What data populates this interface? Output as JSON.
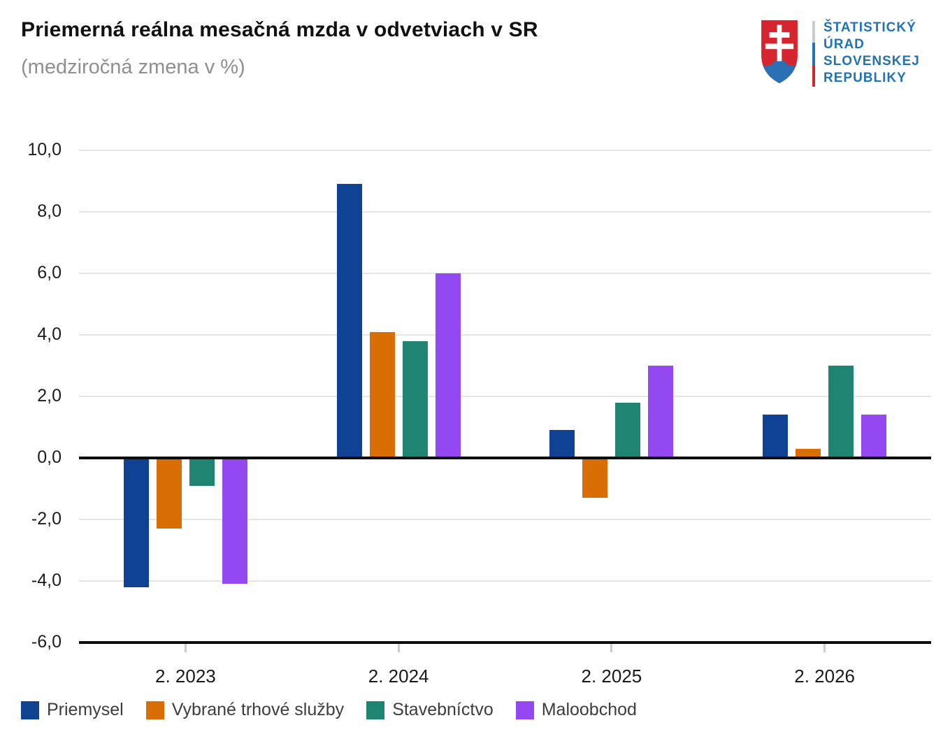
{
  "logo": {
    "lines": [
      "ŠTATISTICKÝ",
      "ÚRAD",
      "SLOVENSKEJ",
      "REPUBLIKY"
    ],
    "text_color": "#2173B5",
    "shield_red": "#D6252E",
    "shield_blue": "#2B6FB5",
    "divider_colors": [
      "#C9CDD1",
      "#2173B5",
      "#D6252E"
    ]
  },
  "chart_data": {
    "type": "bar",
    "title": "Priemerná reálna mesačná mzda v odvetviach v SR",
    "subtitle": "(medziročná zmena v %)",
    "categories": [
      "2. 2023",
      "2. 2024",
      "2. 2025",
      "2. 2026"
    ],
    "series": [
      {
        "name": "Priemysel",
        "color": "#104293",
        "values": [
          -4.2,
          8.9,
          0.9,
          1.4
        ]
      },
      {
        "name": "Vybrané trhové služby",
        "color": "#D86E04",
        "values": [
          -2.3,
          4.1,
          -1.3,
          0.3
        ]
      },
      {
        "name": "Stavebníctvo",
        "color": "#1F8572",
        "values": [
          -0.9,
          3.8,
          1.8,
          3.0
        ]
      },
      {
        "name": "Maloobchod",
        "color": "#9448F2",
        "values": [
          -4.1,
          6.0,
          3.0,
          1.4
        ]
      }
    ],
    "ylim": [
      -6,
      10
    ],
    "y_tick_step": 2,
    "y_tick_labels": [
      "10,0",
      "8,0",
      "6,0",
      "4,0",
      "2,0",
      "0,0",
      "-2,0",
      "-4,0",
      "-6,0"
    ],
    "y_tick_values": [
      10,
      8,
      6,
      4,
      2,
      0,
      -2,
      -4,
      -6
    ],
    "grid": true,
    "zero_line": true,
    "legend_position": "bottom",
    "gridline_color": "#E4E4E4",
    "axis_color": "#0D0D0D"
  }
}
